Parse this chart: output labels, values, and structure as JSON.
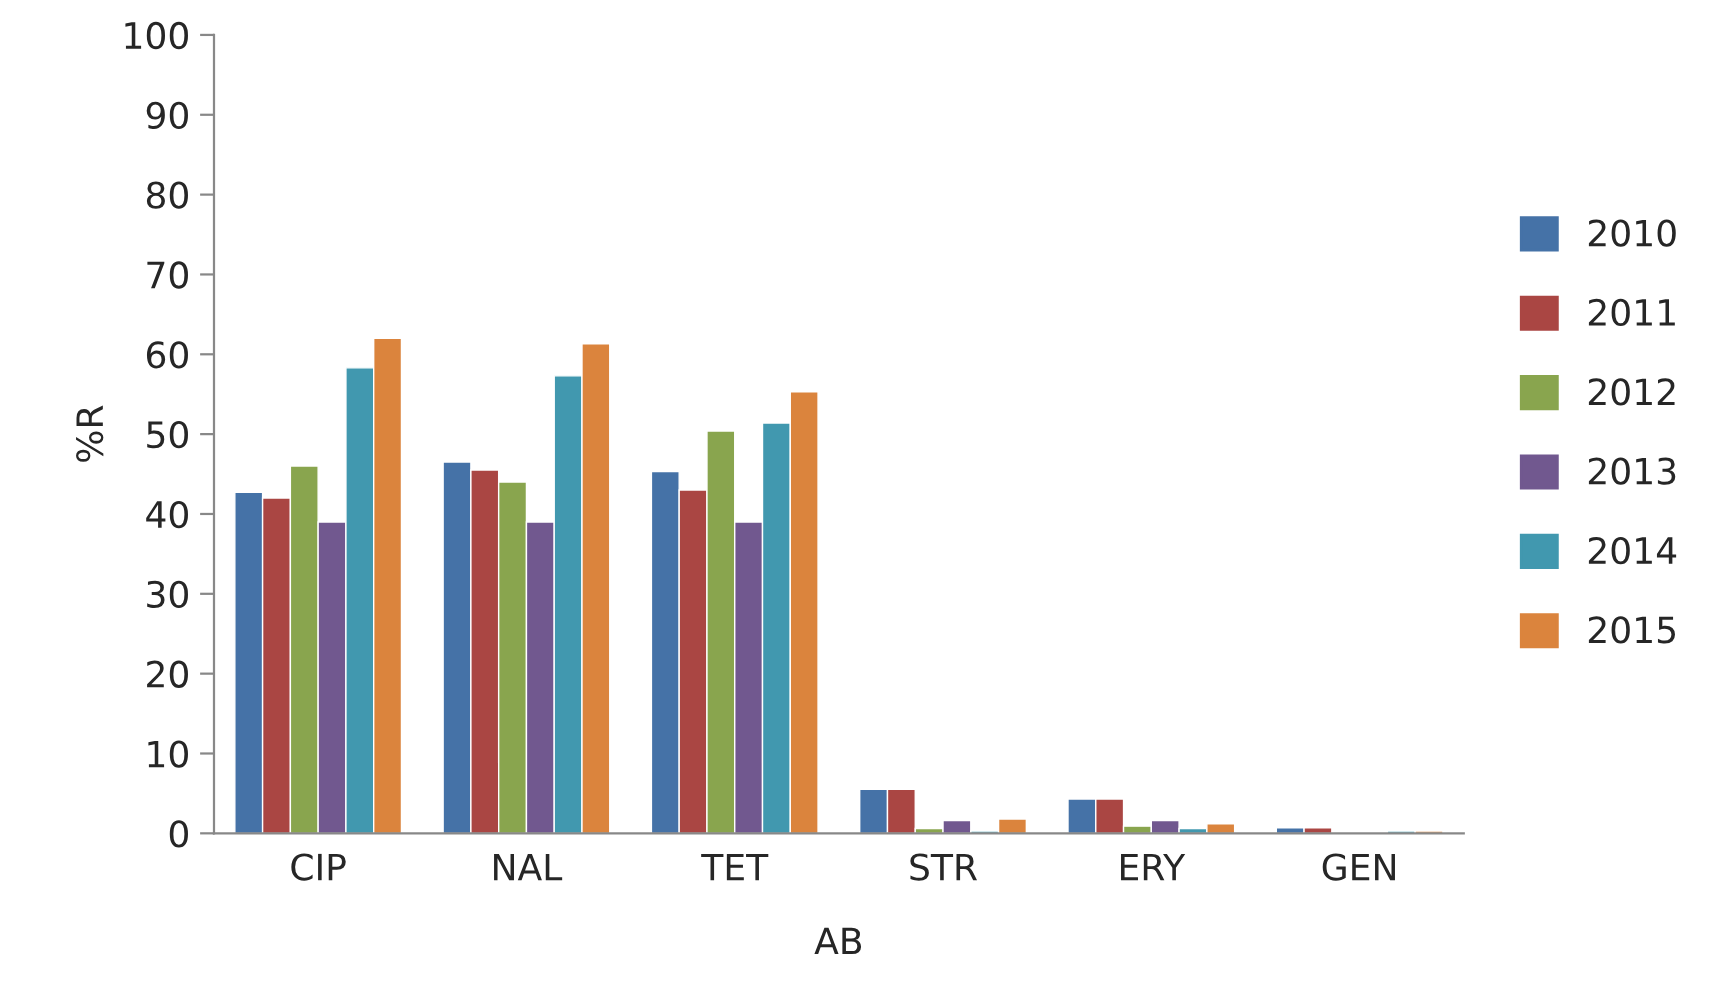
{
  "chart_data": {
    "type": "bar",
    "xlabel": "AB",
    "ylabel": "%R",
    "categories": [
      "CIP",
      "NAL",
      "TET",
      "STR",
      "ERY",
      "GEN"
    ],
    "series": [
      {
        "name": "2010",
        "color": "#4572a7",
        "values": [
          42.7,
          46.5,
          45.3,
          5.5,
          4.3,
          0.7
        ]
      },
      {
        "name": "2011",
        "color": "#aa4643",
        "values": [
          42,
          45.5,
          43,
          5.5,
          4.3,
          0.7
        ]
      },
      {
        "name": "2012",
        "color": "#89a54e",
        "values": [
          46,
          44,
          50.4,
          0.6,
          0.9,
          null
        ]
      },
      {
        "name": "2013",
        "color": "#71588f",
        "values": [
          39,
          39,
          39,
          1.6,
          1.6,
          null
        ]
      },
      {
        "name": "2014",
        "color": "#4198af",
        "values": [
          58.3,
          57.3,
          51.4,
          0.3,
          0.6,
          0.3
        ]
      },
      {
        "name": "2015",
        "color": "#db843d",
        "values": [
          62,
          61.3,
          55.3,
          1.8,
          1.2,
          0.3
        ]
      }
    ],
    "ylim": [
      0,
      100
    ],
    "yticks": [
      0,
      10,
      20,
      30,
      40,
      50,
      60,
      70,
      80,
      90,
      100
    ],
    "grid": false,
    "legend": "right"
  }
}
